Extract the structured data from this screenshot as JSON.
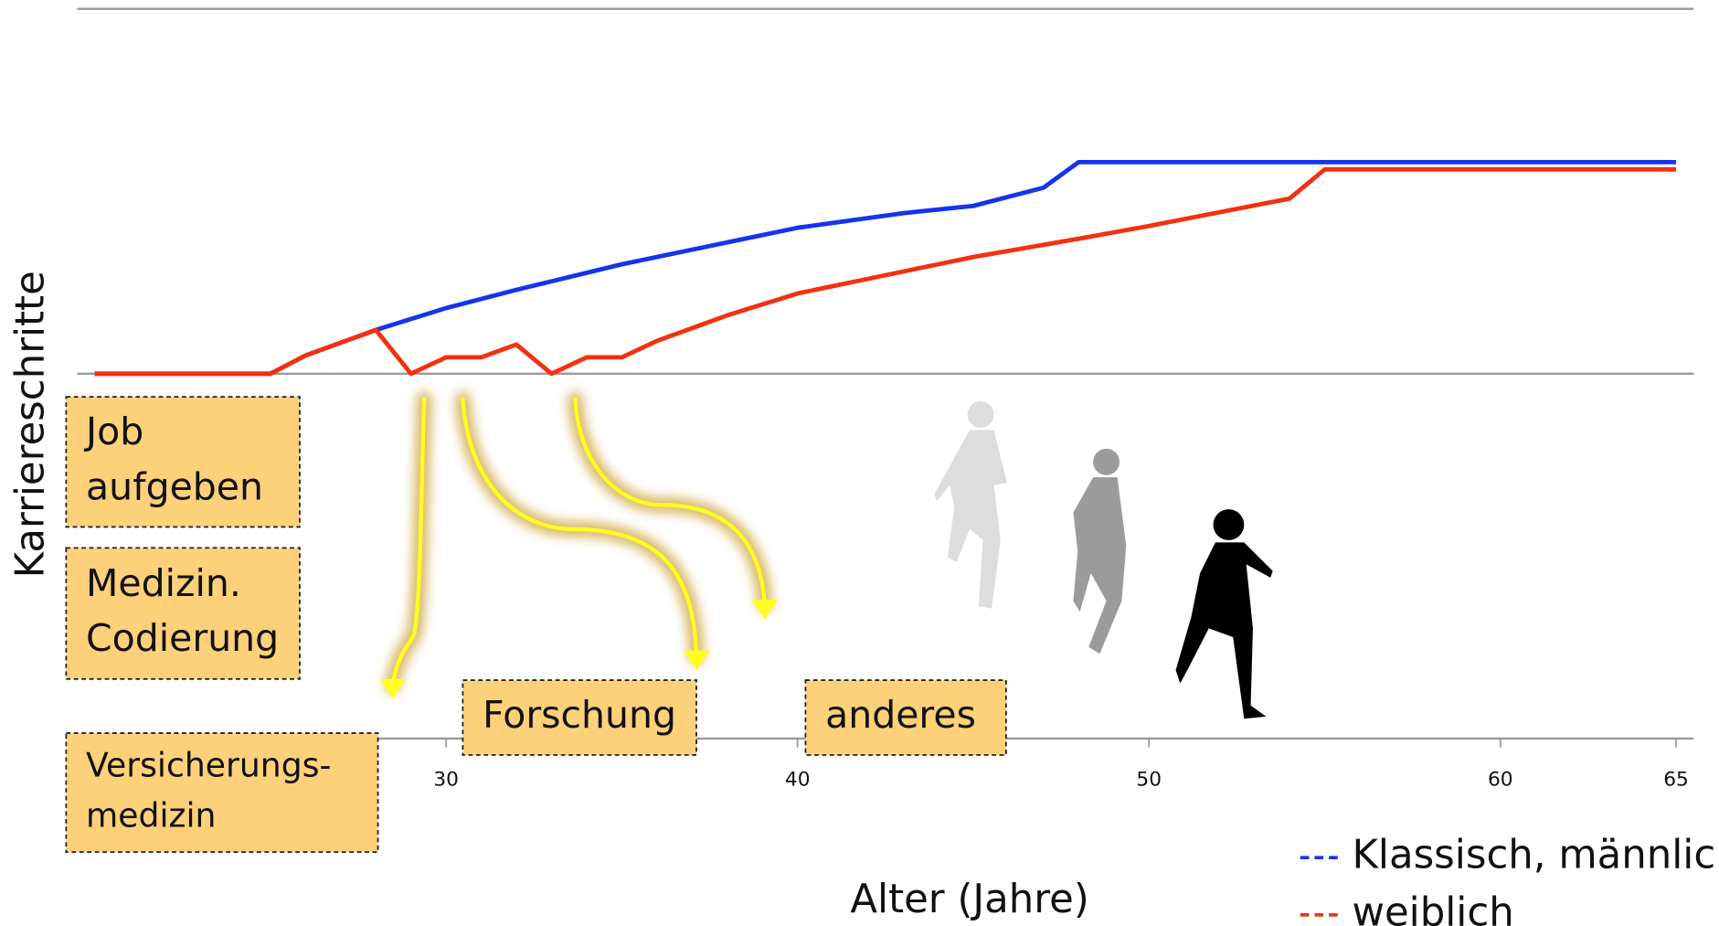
{
  "chart_data": {
    "type": "line",
    "xlabel": "Alter (Jahre)",
    "ylabel": "Karriereschritte",
    "series": [
      {
        "name": "Klassisch, männlich",
        "color": "#1533f0",
        "x": [
          20,
          25,
          26,
          28,
          30,
          32,
          35,
          38,
          40,
          43,
          45,
          47,
          48,
          65
        ],
        "values": [
          10,
          10,
          10.5,
          11.2,
          11.8,
          12.3,
          13.0,
          13.6,
          14.0,
          14.4,
          14.6,
          15.1,
          15.8,
          15.8
        ]
      },
      {
        "name": "weiblich",
        "color": "#f5300f",
        "x": [
          20,
          25,
          26,
          28,
          29,
          30,
          31,
          32,
          33,
          34,
          35,
          36,
          38,
          40,
          42,
          45,
          48,
          50,
          54,
          55,
          65
        ],
        "values": [
          10,
          10,
          10.5,
          11.2,
          10,
          10.45,
          10.45,
          10.8,
          10,
          10.45,
          10.45,
          10.9,
          11.6,
          12.2,
          12.6,
          13.2,
          13.7,
          14.05,
          14.8,
          15.6,
          15.6
        ]
      }
    ],
    "xlim": [
      19.5,
      65.5
    ],
    "xticks": [
      30,
      40,
      50,
      60,
      65
    ],
    "ylim": [
      0,
      20
    ],
    "yticks": [
      10,
      20
    ],
    "show_ytick_labels": false,
    "grid": true,
    "annotations": [
      {
        "lines": [
          "Job",
          "aufgeben"
        ]
      },
      {
        "lines": [
          "Medizin.",
          "Codierung"
        ]
      },
      {
        "lines": [
          "Versicherungs-",
          "medizin"
        ]
      },
      {
        "lines": [
          "Forschung"
        ]
      },
      {
        "lines": [
          "anderes"
        ]
      }
    ]
  }
}
